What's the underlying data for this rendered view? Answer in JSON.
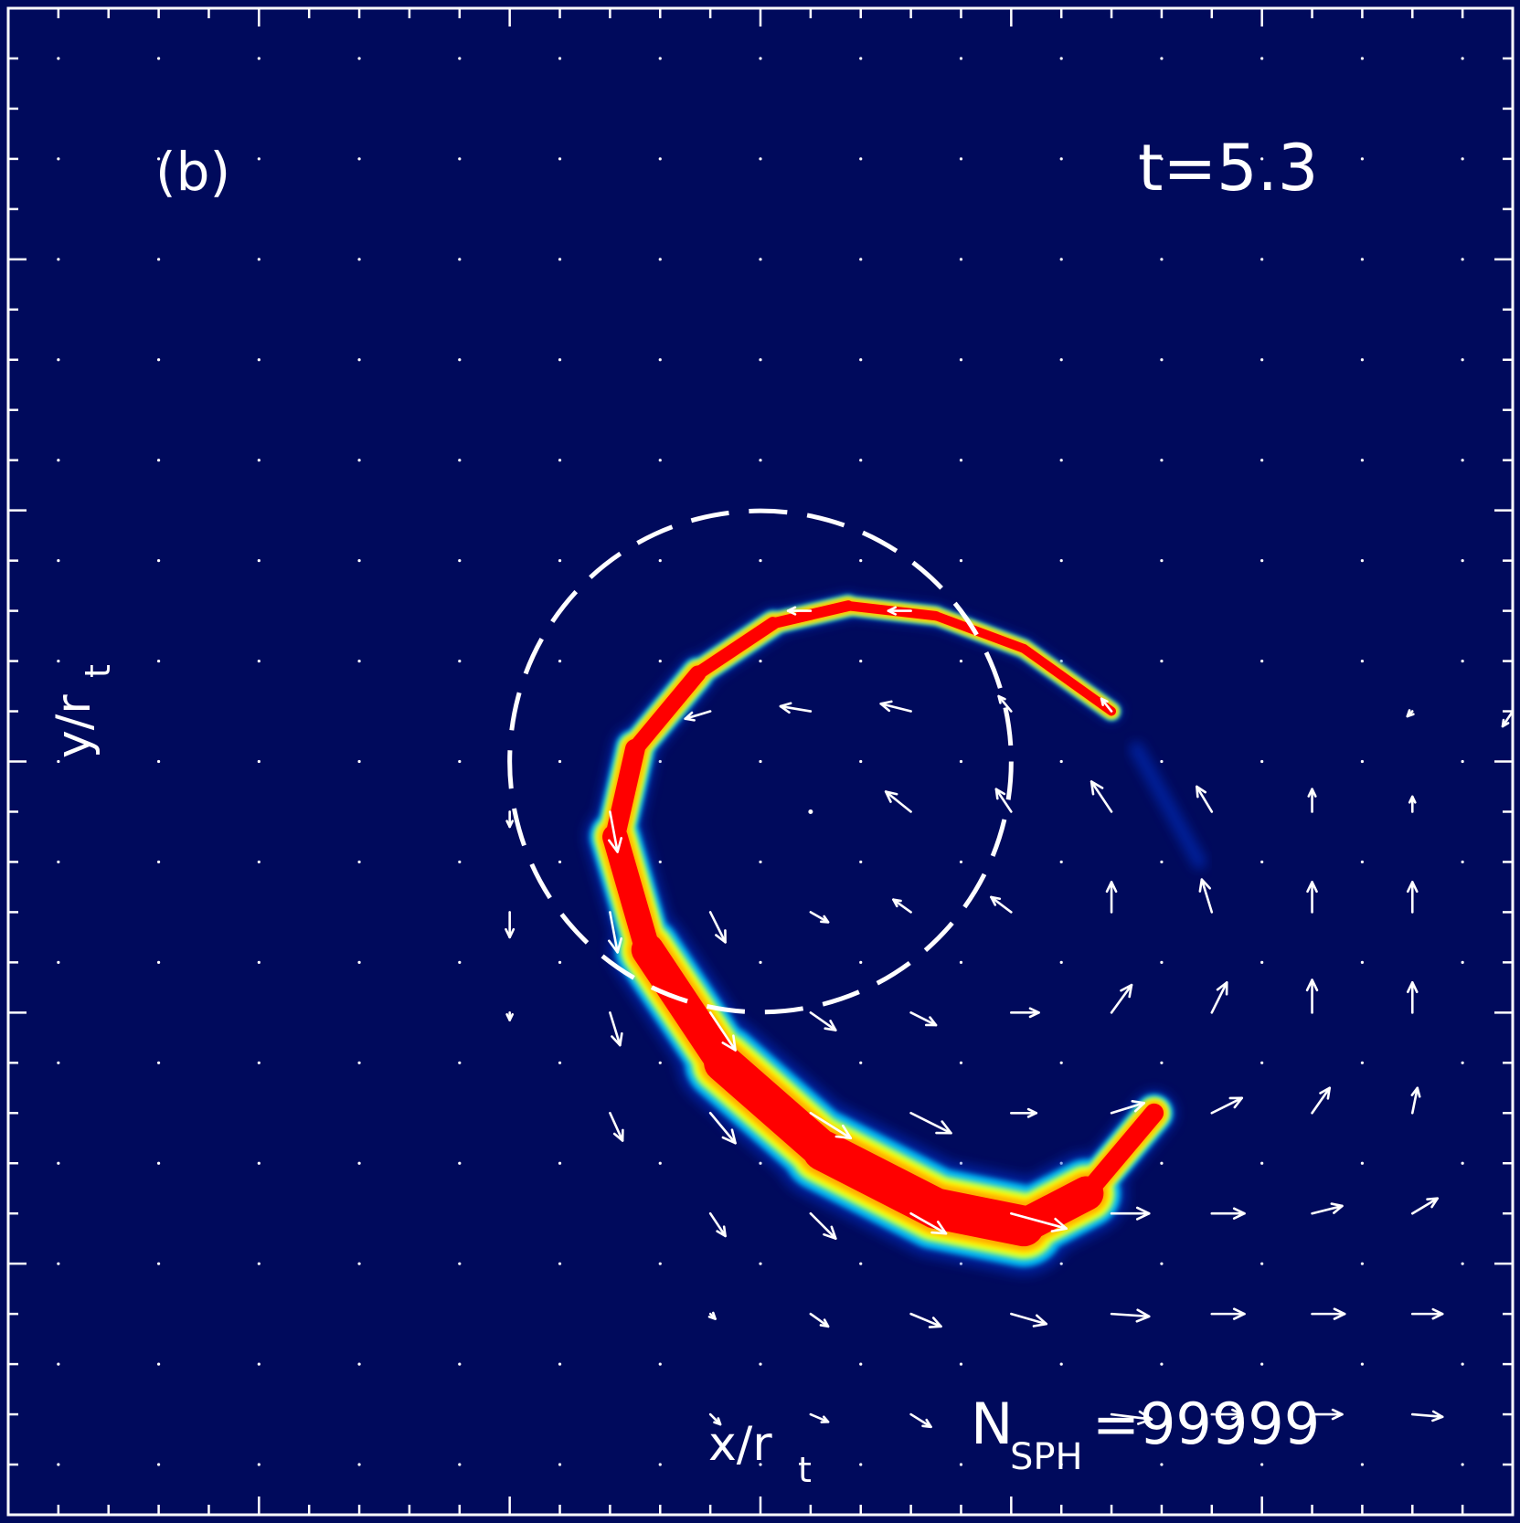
{
  "panel_label": "(b)",
  "time_label": "t=5.3",
  "nsph": {
    "symbol": "N",
    "subscript": "SPH",
    "value": "=99999"
  },
  "xlabel": {
    "main": "x/r",
    "sub": "t"
  },
  "ylabel": {
    "main": "y/r",
    "sub": "t"
  },
  "chart_data": {
    "type": "heatmap",
    "title": "",
    "description_fields": {
      "colormap": [
        "#000a5c",
        "#0033cc",
        "#00c8ff",
        "#aaff66",
        "#ffff00",
        "#ffaa00",
        "#ff0000"
      ],
      "background_color": "#000a5c",
      "frame_color": "#ffffff",
      "grid": "dot-lattice",
      "overlays": [
        "velocity-vector-field",
        "dashed-circle"
      ]
    },
    "axes": {
      "xlim": [
        -3,
        3
      ],
      "ylim": [
        -3,
        3
      ],
      "tick_labels": "none",
      "major_ticks_every": 1,
      "minor_ticks_every": 0.2
    },
    "dashed_circle": {
      "center": [
        0,
        0
      ],
      "radius": 1
    },
    "density_spiral": {
      "spine": [
        [
          1.4,
          0.2
        ],
        [
          1.05,
          0.45
        ],
        [
          0.7,
          0.58
        ],
        [
          0.35,
          0.62
        ],
        [
          0.05,
          0.55
        ],
        [
          -0.25,
          0.35
        ],
        [
          -0.5,
          0.05
        ],
        [
          -0.58,
          -0.3
        ],
        [
          -0.45,
          -0.75
        ],
        [
          -0.15,
          -1.2
        ],
        [
          0.25,
          -1.55
        ],
        [
          0.7,
          -1.78
        ],
        [
          1.05,
          -1.85
        ],
        [
          1.3,
          -1.72
        ],
        [
          1.57,
          -1.4
        ]
      ],
      "widths": [
        0.05,
        0.05,
        0.05,
        0.055,
        0.065,
        0.08,
        0.1,
        0.12,
        0.16,
        0.2,
        0.22,
        0.23,
        0.22,
        0.16,
        0.05
      ]
    },
    "faint_tail": [
      [
        1.5,
        0.05
      ],
      [
        1.75,
        -0.4
      ]
    ],
    "velocity_grid": {
      "x": [
        -2.6,
        -2.2,
        -1.8,
        -1.4,
        -1.0,
        -0.6,
        -0.2,
        0.2,
        0.6,
        1.0,
        1.4,
        1.8,
        2.2,
        2.6
      ],
      "y": [
        2.2,
        1.8,
        1.4,
        1.0,
        0.6,
        0.2,
        -0.2,
        -0.6,
        -1.0,
        -1.4,
        -1.8,
        -2.2,
        -2.6,
        -2.8
      ]
    },
    "vectors": [
      {
        "x": 0.2,
        "y": 0.6,
        "dx": -0.09,
        "dy": 0.0
      },
      {
        "x": 0.6,
        "y": 0.6,
        "dx": -0.09,
        "dy": 0.0
      },
      {
        "x": -0.2,
        "y": 0.2,
        "dx": -0.1,
        "dy": -0.03
      },
      {
        "x": 0.2,
        "y": 0.2,
        "dx": -0.12,
        "dy": 0.02
      },
      {
        "x": 0.6,
        "y": 0.2,
        "dx": -0.12,
        "dy": 0.03
      },
      {
        "x": 1.0,
        "y": 0.2,
        "dx": -0.05,
        "dy": 0.06
      },
      {
        "x": 1.4,
        "y": 0.2,
        "dx": -0.04,
        "dy": 0.05
      },
      {
        "x": 2.6,
        "y": 0.2,
        "dx": -0.02,
        "dy": -0.02
      },
      {
        "x": 3.0,
        "y": 0.2,
        "dx": -0.04,
        "dy": -0.06
      },
      {
        "x": -1.0,
        "y": -0.2,
        "dx": 0.0,
        "dy": -0.06
      },
      {
        "x": -0.6,
        "y": -0.2,
        "dx": 0.03,
        "dy": -0.16
      },
      {
        "x": 0.2,
        "y": -0.2,
        "dx": 0.0,
        "dy": 0.0
      },
      {
        "x": 0.6,
        "y": -0.2,
        "dx": -0.1,
        "dy": 0.08
      },
      {
        "x": 1.0,
        "y": -0.2,
        "dx": -0.06,
        "dy": 0.09
      },
      {
        "x": 1.4,
        "y": -0.2,
        "dx": -0.08,
        "dy": 0.12
      },
      {
        "x": 1.8,
        "y": -0.2,
        "dx": -0.06,
        "dy": 0.1
      },
      {
        "x": 2.2,
        "y": -0.2,
        "dx": 0.0,
        "dy": 0.09
      },
      {
        "x": 2.6,
        "y": -0.2,
        "dx": 0.0,
        "dy": 0.06
      },
      {
        "x": -1.0,
        "y": -0.6,
        "dx": 0.0,
        "dy": -0.1
      },
      {
        "x": -0.6,
        "y": -0.6,
        "dx": 0.03,
        "dy": -0.16
      },
      {
        "x": -0.2,
        "y": -0.6,
        "dx": 0.06,
        "dy": -0.12
      },
      {
        "x": 0.2,
        "y": -0.6,
        "dx": 0.07,
        "dy": -0.04
      },
      {
        "x": 0.6,
        "y": -0.6,
        "dx": -0.07,
        "dy": 0.05
      },
      {
        "x": 1.0,
        "y": -0.6,
        "dx": -0.08,
        "dy": 0.06
      },
      {
        "x": 1.4,
        "y": -0.6,
        "dx": 0.0,
        "dy": 0.12
      },
      {
        "x": 1.8,
        "y": -0.6,
        "dx": -0.04,
        "dy": 0.13
      },
      {
        "x": 2.2,
        "y": -0.6,
        "dx": 0.0,
        "dy": 0.12
      },
      {
        "x": 2.6,
        "y": -0.6,
        "dx": 0.0,
        "dy": 0.12
      },
      {
        "x": -1.0,
        "y": -1.0,
        "dx": 0.0,
        "dy": -0.03
      },
      {
        "x": -0.6,
        "y": -1.0,
        "dx": 0.04,
        "dy": -0.13
      },
      {
        "x": -0.2,
        "y": -1.0,
        "dx": 0.1,
        "dy": -0.15
      },
      {
        "x": 0.2,
        "y": -1.0,
        "dx": 0.1,
        "dy": -0.07
      },
      {
        "x": 0.6,
        "y": -1.0,
        "dx": 0.1,
        "dy": -0.05
      },
      {
        "x": 1.0,
        "y": -1.0,
        "dx": 0.11,
        "dy": 0.0
      },
      {
        "x": 1.4,
        "y": -1.0,
        "dx": 0.08,
        "dy": 0.11
      },
      {
        "x": 1.8,
        "y": -1.0,
        "dx": 0.06,
        "dy": 0.12
      },
      {
        "x": 2.2,
        "y": -1.0,
        "dx": 0.0,
        "dy": 0.13
      },
      {
        "x": 2.6,
        "y": -1.0,
        "dx": 0.0,
        "dy": 0.12
      },
      {
        "x": -0.6,
        "y": -1.4,
        "dx": 0.05,
        "dy": -0.11
      },
      {
        "x": -0.2,
        "y": -1.4,
        "dx": 0.1,
        "dy": -0.12
      },
      {
        "x": 0.2,
        "y": -1.4,
        "dx": 0.16,
        "dy": -0.1
      },
      {
        "x": 0.6,
        "y": -1.4,
        "dx": 0.16,
        "dy": -0.08
      },
      {
        "x": 1.0,
        "y": -1.4,
        "dx": 0.1,
        "dy": 0.0
      },
      {
        "x": 1.4,
        "y": -1.4,
        "dx": 0.13,
        "dy": 0.04
      },
      {
        "x": 1.8,
        "y": -1.4,
        "dx": 0.12,
        "dy": 0.06
      },
      {
        "x": 2.2,
        "y": -1.4,
        "dx": 0.07,
        "dy": 0.1
      },
      {
        "x": 2.6,
        "y": -1.4,
        "dx": 0.02,
        "dy": 0.1
      },
      {
        "x": -0.2,
        "y": -1.8,
        "dx": 0.06,
        "dy": -0.09
      },
      {
        "x": 0.2,
        "y": -1.8,
        "dx": 0.1,
        "dy": -0.1
      },
      {
        "x": 0.6,
        "y": -1.8,
        "dx": 0.14,
        "dy": -0.08
      },
      {
        "x": 1.0,
        "y": -1.8,
        "dx": 0.22,
        "dy": -0.06
      },
      {
        "x": 1.4,
        "y": -1.8,
        "dx": 0.15,
        "dy": 0.0
      },
      {
        "x": 1.8,
        "y": -1.8,
        "dx": 0.13,
        "dy": 0.0
      },
      {
        "x": 2.2,
        "y": -1.8,
        "dx": 0.12,
        "dy": 0.03
      },
      {
        "x": 2.6,
        "y": -1.8,
        "dx": 0.1,
        "dy": 0.06
      },
      {
        "x": -0.2,
        "y": -2.2,
        "dx": 0.02,
        "dy": -0.02
      },
      {
        "x": 0.2,
        "y": -2.2,
        "dx": 0.07,
        "dy": -0.05
      },
      {
        "x": 0.6,
        "y": -2.2,
        "dx": 0.12,
        "dy": -0.05
      },
      {
        "x": 1.0,
        "y": -2.2,
        "dx": 0.14,
        "dy": -0.04
      },
      {
        "x": 1.4,
        "y": -2.2,
        "dx": 0.15,
        "dy": -0.01
      },
      {
        "x": 1.8,
        "y": -2.2,
        "dx": 0.13,
        "dy": 0.0
      },
      {
        "x": 2.2,
        "y": -2.2,
        "dx": 0.13,
        "dy": 0.0
      },
      {
        "x": 2.6,
        "y": -2.2,
        "dx": 0.12,
        "dy": 0.0
      },
      {
        "x": -0.2,
        "y": -2.6,
        "dx": 0.04,
        "dy": -0.04
      },
      {
        "x": 0.2,
        "y": -2.6,
        "dx": 0.07,
        "dy": -0.03
      },
      {
        "x": 0.6,
        "y": -2.6,
        "dx": 0.08,
        "dy": -0.05
      },
      {
        "x": 1.4,
        "y": -2.6,
        "dx": 0.16,
        "dy": -0.02
      },
      {
        "x": 1.8,
        "y": -2.6,
        "dx": 0.12,
        "dy": 0.0
      },
      {
        "x": 2.2,
        "y": -2.6,
        "dx": 0.12,
        "dy": 0.0
      },
      {
        "x": 2.6,
        "y": -2.6,
        "dx": 0.12,
        "dy": -0.01
      }
    ]
  }
}
